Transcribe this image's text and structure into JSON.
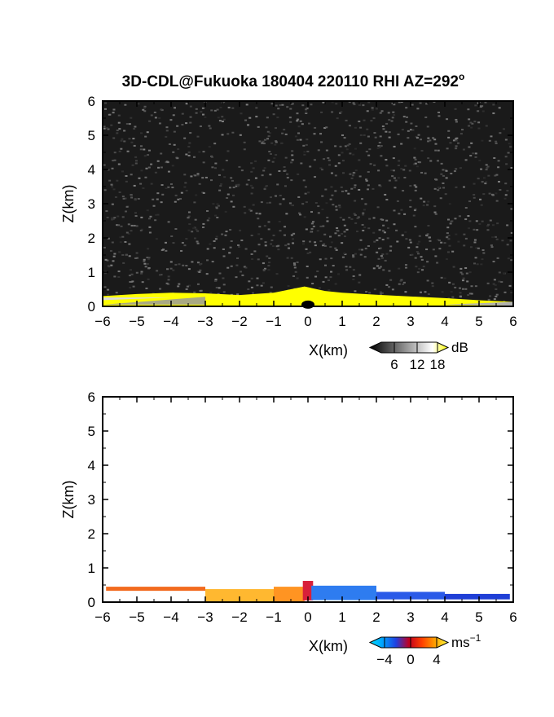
{
  "title": "3D-CDL@Fukuoka 180404 220110 RHI AZ=292",
  "title_degree": "o",
  "chart_data": [
    {
      "type": "heatmap",
      "panel": "reflectivity",
      "xlabel": "X(km)",
      "ylabel": "Z(km)",
      "xlim": [
        -6,
        6
      ],
      "ylim": [
        0,
        6
      ],
      "x_ticks": [
        "-6",
        "-5",
        "-4",
        "-3",
        "-2",
        "-1",
        "0",
        "1",
        "2",
        "3",
        "4",
        "5",
        "6"
      ],
      "y_ticks": [
        "0",
        "1",
        "2",
        "3",
        "4",
        "5",
        "6"
      ],
      "background_color": "#1a1a1a",
      "echo_color": "#ffff00",
      "echo_top_km": [
        {
          "x": -6.0,
          "z": 0.3
        },
        {
          "x": -5.0,
          "z": 0.36
        },
        {
          "x": -4.0,
          "z": 0.4
        },
        {
          "x": -3.0,
          "z": 0.38
        },
        {
          "x": -2.0,
          "z": 0.33
        },
        {
          "x": -1.0,
          "z": 0.4
        },
        {
          "x": -0.1,
          "z": 0.58
        },
        {
          "x": 0.5,
          "z": 0.45
        },
        {
          "x": 1.0,
          "z": 0.4
        },
        {
          "x": 2.0,
          "z": 0.34
        },
        {
          "x": 3.0,
          "z": 0.29
        },
        {
          "x": 4.0,
          "z": 0.24
        },
        {
          "x": 5.0,
          "z": 0.18
        },
        {
          "x": 6.0,
          "z": 0.13
        }
      ],
      "colorbar": {
        "unit": "dB",
        "ticks": [
          "6",
          "12",
          "18"
        ],
        "colors": [
          "#000000",
          "#404040",
          "#808080",
          "#c0c0c0",
          "#ffffff",
          "#ffff00"
        ]
      }
    },
    {
      "type": "heatmap",
      "panel": "doppler_velocity",
      "xlabel": "X(km)",
      "ylabel": "Z(km)",
      "xlim": [
        -6,
        6
      ],
      "ylim": [
        0,
        6
      ],
      "x_ticks": [
        "-6",
        "-5",
        "-4",
        "-3",
        "-2",
        "-1",
        "0",
        "1",
        "2",
        "3",
        "4",
        "5",
        "6"
      ],
      "y_ticks": [
        "0",
        "1",
        "2",
        "3",
        "4",
        "5",
        "6"
      ],
      "segments": [
        {
          "x0": -5.9,
          "x1": -3.0,
          "z_top": 0.45,
          "z_bottom": 0.33,
          "velocity": 3.0,
          "color": "#f26a1e"
        },
        {
          "x0": -3.0,
          "x1": -1.0,
          "z_top": 0.38,
          "z_bottom": 0.02,
          "velocity": 4.0,
          "color": "#ffb830"
        },
        {
          "x0": -1.0,
          "x1": -0.1,
          "z_top": 0.45,
          "z_bottom": 0.02,
          "velocity": 3.5,
          "color": "#ff9422"
        },
        {
          "x0": -0.15,
          "x1": 0.15,
          "z_top": 0.62,
          "z_bottom": 0.05,
          "velocity": 0.0,
          "color": "#d8203a"
        },
        {
          "x0": 0.1,
          "x1": 2.0,
          "z_top": 0.48,
          "z_bottom": 0.06,
          "velocity": -3.0,
          "color": "#2e7cf0"
        },
        {
          "x0": 2.0,
          "x1": 4.0,
          "z_top": 0.3,
          "z_bottom": 0.08,
          "velocity": -3.5,
          "color": "#2a5ae8"
        },
        {
          "x0": 4.0,
          "x1": 5.9,
          "z_top": 0.24,
          "z_bottom": 0.08,
          "velocity": -4.0,
          "color": "#1f3fd6"
        }
      ],
      "colorbar": {
        "unit": "ms",
        "unit_exponent": "-1",
        "ticks": [
          "-4",
          "0",
          "4"
        ],
        "colors": [
          "#00e0ff",
          "#00a0ff",
          "#2040e0",
          "#c00020",
          "#ff4000",
          "#ffa000",
          "#ffff40"
        ]
      }
    }
  ]
}
